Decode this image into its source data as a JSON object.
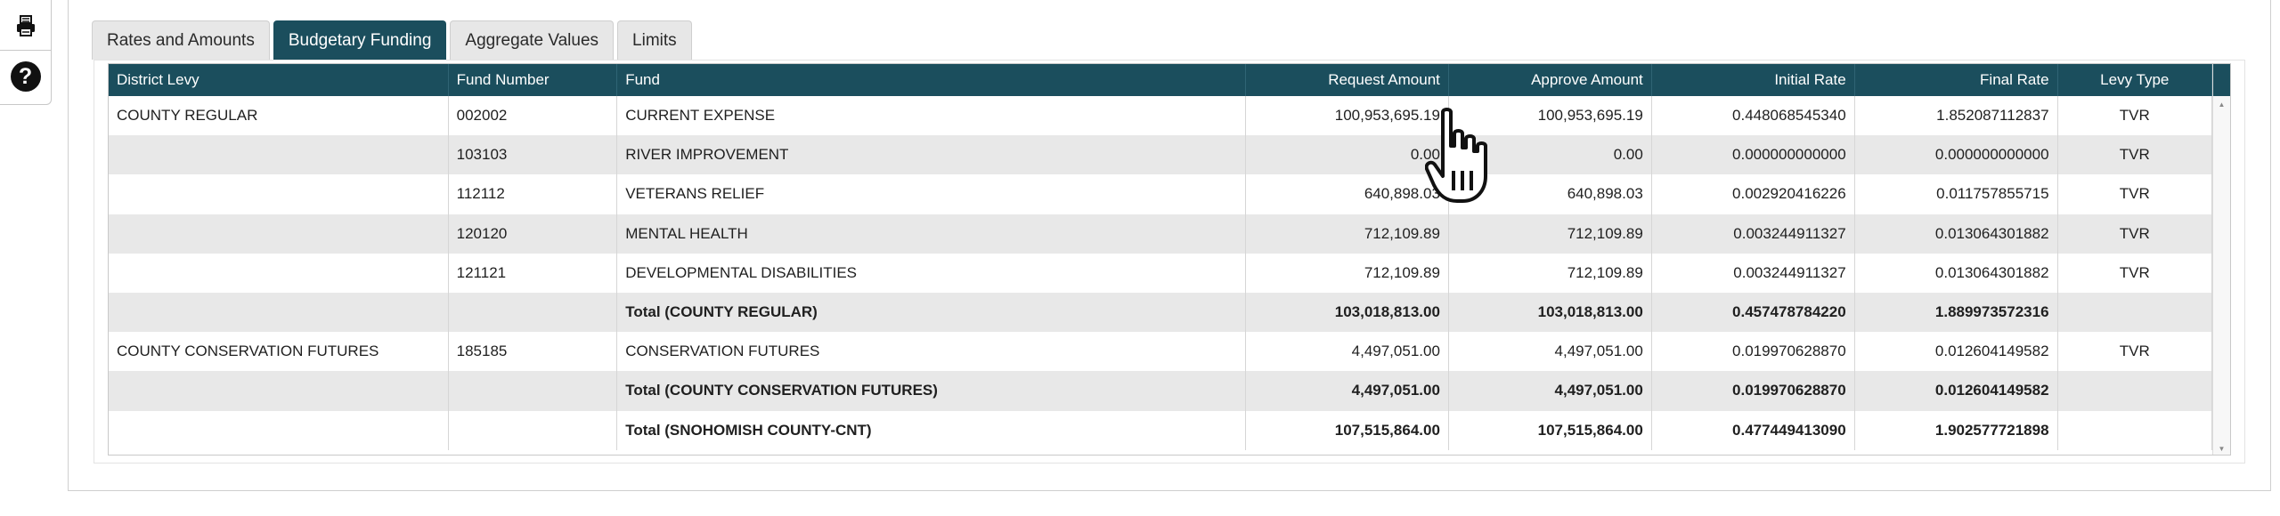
{
  "toolbar": {
    "print_icon": "printer-icon",
    "help_icon": "question-icon",
    "help_glyph": "?"
  },
  "tabs": [
    {
      "label": "Rates and Amounts",
      "active": false
    },
    {
      "label": "Budgetary Funding",
      "active": true
    },
    {
      "label": "Aggregate Values",
      "active": false
    },
    {
      "label": "Limits",
      "active": false
    }
  ],
  "table": {
    "columns": [
      "District Levy",
      "Fund Number",
      "Fund",
      "Request Amount",
      "Approve Amount",
      "Initial Rate",
      "Final Rate",
      "Levy Type"
    ],
    "rows": [
      {
        "district": "COUNTY REGULAR",
        "fund_number": "002002",
        "fund": "CURRENT EXPENSE",
        "request": "100,953,695.19",
        "approve": "100,953,695.19",
        "initial": "0.448068545340",
        "final": "1.852087112837",
        "levy_type": "TVR",
        "total": false
      },
      {
        "district": "",
        "fund_number": "103103",
        "fund": "RIVER IMPROVEMENT",
        "request": "0.00",
        "approve": "0.00",
        "initial": "0.000000000000",
        "final": "0.000000000000",
        "levy_type": "TVR",
        "total": false
      },
      {
        "district": "",
        "fund_number": "112112",
        "fund": "VETERANS RELIEF",
        "request": "640,898.03",
        "approve": "640,898.03",
        "initial": "0.002920416226",
        "final": "0.011757855715",
        "levy_type": "TVR",
        "total": false
      },
      {
        "district": "",
        "fund_number": "120120",
        "fund": "MENTAL HEALTH",
        "request": "712,109.89",
        "approve": "712,109.89",
        "initial": "0.003244911327",
        "final": "0.013064301882",
        "levy_type": "TVR",
        "total": false
      },
      {
        "district": "",
        "fund_number": "121121",
        "fund": "DEVELOPMENTAL DISABILITIES",
        "request": "712,109.89",
        "approve": "712,109.89",
        "initial": "0.003244911327",
        "final": "0.013064301882",
        "levy_type": "TVR",
        "total": false
      },
      {
        "district": "",
        "fund_number": "",
        "fund": "Total (COUNTY REGULAR)",
        "request": "103,018,813.00",
        "approve": "103,018,813.00",
        "initial": "0.457478784220",
        "final": "1.889973572316",
        "levy_type": "",
        "total": true
      },
      {
        "district": "COUNTY CONSERVATION FUTURES",
        "fund_number": "185185",
        "fund": "CONSERVATION FUTURES",
        "request": "4,497,051.00",
        "approve": "4,497,051.00",
        "initial": "0.019970628870",
        "final": "0.012604149582",
        "levy_type": "TVR",
        "total": false
      },
      {
        "district": "",
        "fund_number": "",
        "fund": "Total (COUNTY CONSERVATION FUTURES)",
        "request": "4,497,051.00",
        "approve": "4,497,051.00",
        "initial": "0.019970628870",
        "final": "0.012604149582",
        "levy_type": "",
        "total": true
      },
      {
        "district": "",
        "fund_number": "",
        "fund": "Total (SNOHOMISH COUNTY-CNT)",
        "request": "107,515,864.00",
        "approve": "107,515,864.00",
        "initial": "0.477449413090",
        "final": "1.902577721898",
        "levy_type": "",
        "total": true
      }
    ]
  },
  "scrollbar": {
    "up_glyph": "▲",
    "down_glyph": "▼"
  },
  "colors": {
    "header_bg": "#1b4e5d",
    "active_tab": "#1b4e5d",
    "alt_row": "#e8e8e8"
  },
  "cursor": {
    "icon": "hand-pointer-icon"
  }
}
